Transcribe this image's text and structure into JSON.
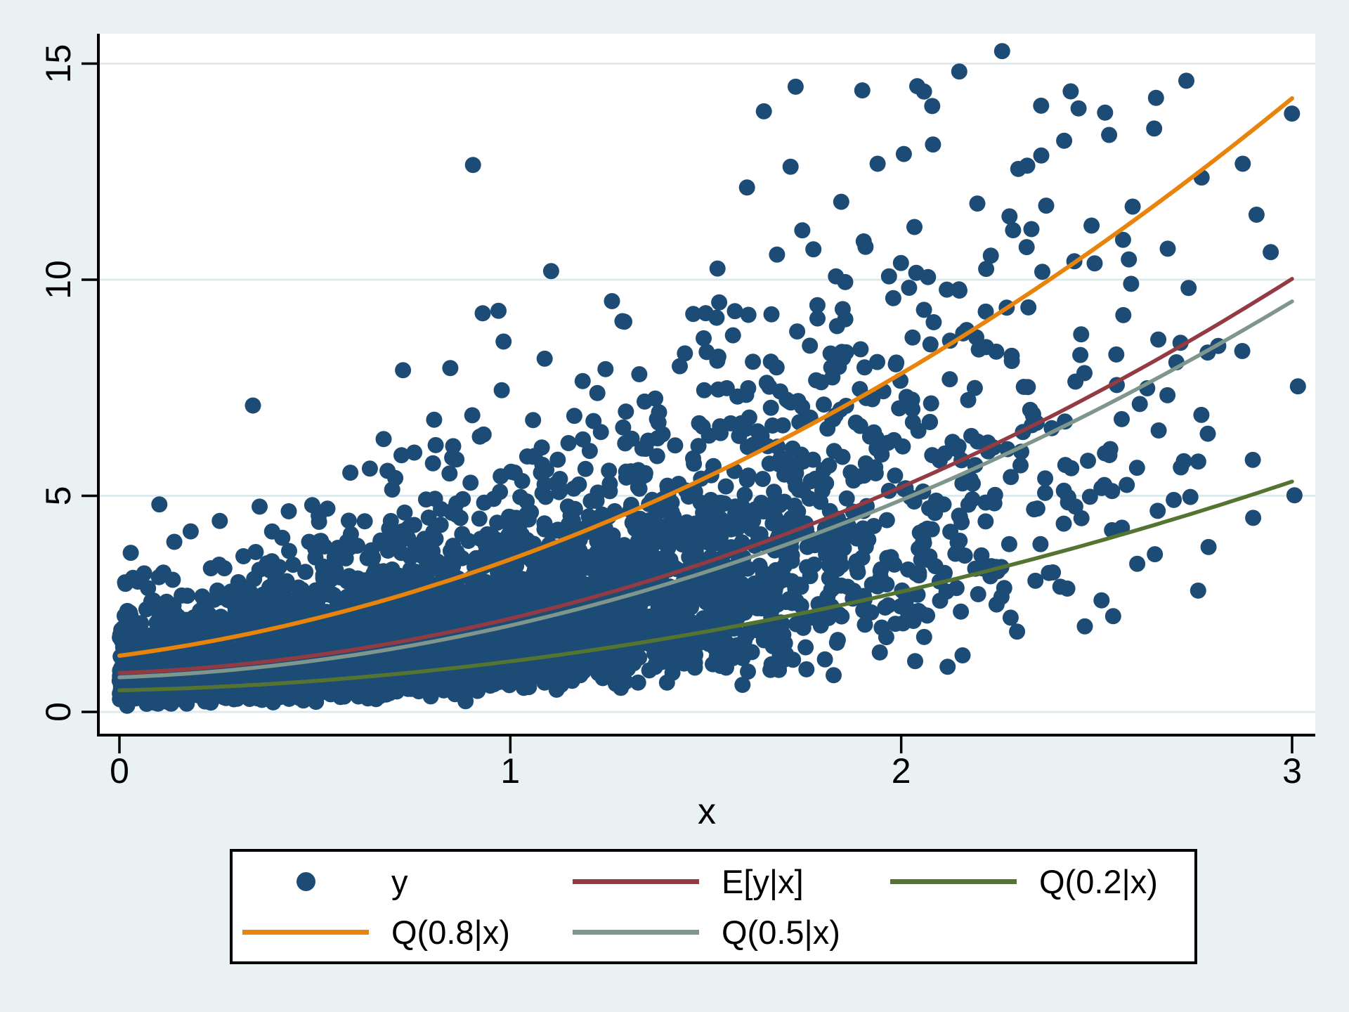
{
  "figure": {
    "background_color": "#e9f1f3",
    "plot_background_color": "#ffffff",
    "grid_color": "#dfeaec",
    "axis_color": "#000000",
    "tick_label_color": "#000000"
  },
  "chart_data": {
    "type": "scatter",
    "title": "",
    "xlabel": "x",
    "ylabel": "",
    "xlim": [
      -0.05,
      3.06
    ],
    "ylim": [
      -0.55,
      15.7
    ],
    "x_ticks": [
      0,
      1,
      2,
      3
    ],
    "y_ticks": [
      0,
      5,
      10,
      15
    ],
    "grid": "horizontal-only",
    "legend_position": "bottom",
    "scatter": {
      "name": "y",
      "color": "#1c4c75",
      "marker": "circle",
      "n_points": 4800,
      "seed": 1337,
      "x_distribution": "half-normal, sigma 1.05, truncated at 3",
      "y_model": "y = median(x) * exp(0.55 * N(0,1)), median(x)=0.8+0.35x+0.85x^2, clipped to [0.04, 15.3]",
      "x_range_observed": [
        0,
        2.9
      ],
      "y_range_observed": [
        0.05,
        15.2
      ]
    },
    "curves_x": [
      0,
      0.25,
      0.5,
      0.75,
      1.0,
      1.25,
      1.5,
      1.75,
      2.0,
      2.25,
      2.5,
      2.75,
      3.0
    ],
    "curves": [
      {
        "name": "E[y|x]",
        "color": "#943a42",
        "width": 5.5,
        "fit": [
          0.9,
          0.37,
          0.89
        ],
        "values": [
          0.9,
          1.05,
          1.31,
          1.68,
          2.16,
          2.75,
          3.46,
          4.27,
          5.2,
          6.24,
          7.39,
          8.65,
          10.02
        ]
      },
      {
        "name": "Q(0.2|x)",
        "color": "#567431",
        "width": 5.5,
        "fit": [
          0.5,
          0.2,
          0.47
        ],
        "values": [
          0.5,
          0.58,
          0.72,
          0.91,
          1.17,
          1.48,
          1.86,
          2.29,
          2.78,
          3.33,
          3.94,
          4.6,
          5.33
        ]
      },
      {
        "name": "Q(0.8|x)",
        "color": "#e8830b",
        "width": 6,
        "fit": [
          1.3,
          1.194,
          1.035
        ],
        "values": [
          1.3,
          1.66,
          2.16,
          2.78,
          3.53,
          4.41,
          5.42,
          6.56,
          7.83,
          9.23,
          10.75,
          12.41,
          14.2
        ]
      },
      {
        "name": "Q(0.5|x)",
        "color": "#7f968d",
        "width": 5.5,
        "fit": [
          0.8,
          0.35,
          0.85
        ],
        "values": [
          0.8,
          0.94,
          1.19,
          1.54,
          2.0,
          2.57,
          3.24,
          4.02,
          4.9,
          5.89,
          6.99,
          8.19,
          9.5
        ]
      }
    ],
    "legend": {
      "items": [
        {
          "label": "y",
          "swatch": "dot",
          "color": "#1c4c75"
        },
        {
          "label": "E[y|x]",
          "swatch": "line",
          "color": "#943a42"
        },
        {
          "label": "Q(0.2|x)",
          "swatch": "line",
          "color": "#567431"
        },
        {
          "label": "Q(0.8|x)",
          "swatch": "line",
          "color": "#e8830b"
        },
        {
          "label": "Q(0.5|x)",
          "swatch": "line",
          "color": "#7f968d"
        }
      ]
    }
  }
}
